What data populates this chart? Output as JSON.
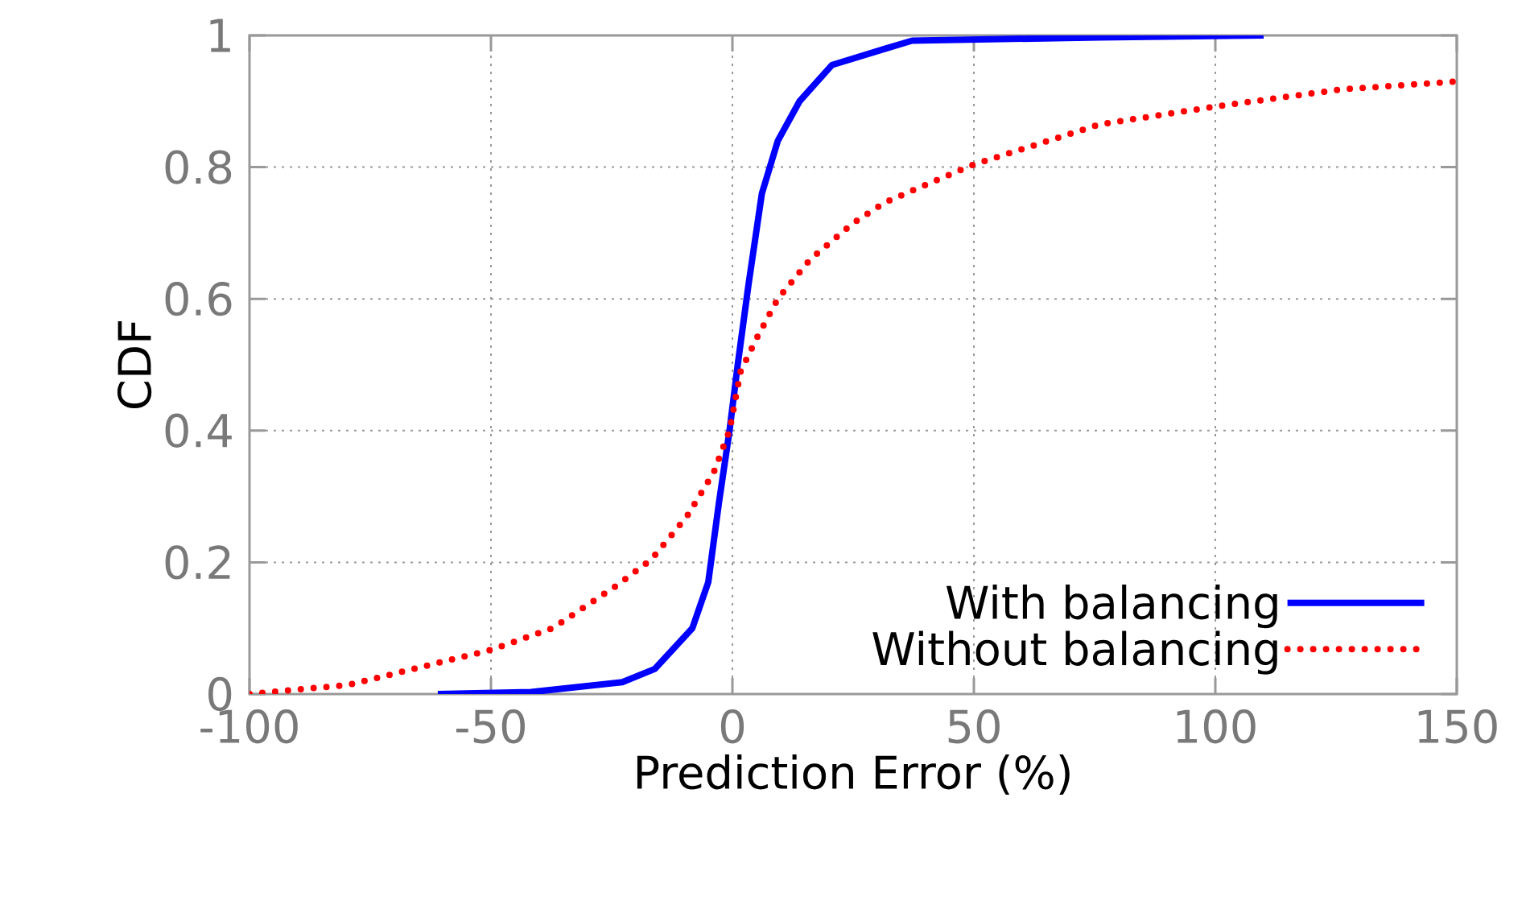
{
  "chart_data": {
    "type": "line",
    "xlabel": "Prediction Error (%)",
    "ylabel": "CDF",
    "xlim": [
      -100,
      150
    ],
    "ylim": [
      0,
      1
    ],
    "xticks": [
      -100,
      -50,
      0,
      50,
      100,
      150
    ],
    "yticks": [
      0,
      0.2,
      0.4,
      0.6,
      0.8,
      1
    ],
    "grid": true,
    "legend": "bottom right",
    "series": [
      {
        "name": "With balancing",
        "color": "#0000ff",
        "line_style": "solid",
        "x": [
          -61,
          -41.7,
          -22.8,
          -16.1,
          -8.3,
          -5,
          -2.8,
          -0.6,
          1.1,
          3.3,
          6.1,
          9.4,
          13.9,
          20.6,
          31.7,
          37.2,
          76,
          110
        ],
        "values": [
          0,
          0.003,
          0.018,
          0.038,
          0.1,
          0.17,
          0.29,
          0.4,
          0.5,
          0.62,
          0.76,
          0.84,
          0.9,
          0.955,
          0.98,
          0.992,
          0.997,
          1
        ]
      },
      {
        "name": "Without balancing",
        "color": "#ff0000",
        "line_style": "dotted",
        "x": [
          -100,
          -79.4,
          -61.7,
          -50,
          -37.2,
          -23.9,
          -16.7,
          -9.4,
          -3.9,
          -0.6,
          1.7,
          5,
          9.4,
          16.1,
          25,
          31.7,
          50,
          76.1,
          100,
          126,
          150
        ],
        "values": [
          0,
          0.014,
          0.046,
          0.067,
          0.1,
          0.165,
          0.205,
          0.27,
          0.336,
          0.4,
          0.49,
          0.54,
          0.6,
          0.66,
          0.715,
          0.747,
          0.804,
          0.865,
          0.892,
          0.918,
          0.93
        ]
      }
    ]
  }
}
